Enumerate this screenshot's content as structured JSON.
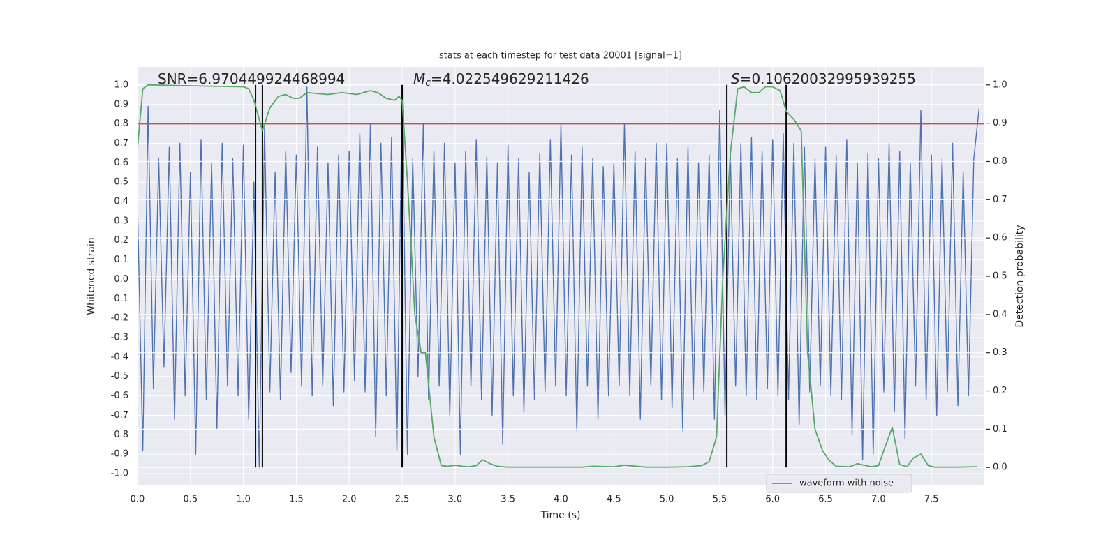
{
  "chart_data": {
    "type": "line",
    "title": "stats at each timestep for test data 20001 [signal=1]",
    "x_label": "Time (s)",
    "y_label": "Whitened strain",
    "y2_label": "Detection probability",
    "xlim": [
      0,
      8
    ],
    "ylim": [
      -1.061,
      1.093
    ],
    "y2lim": [
      -0.047,
      1.047
    ],
    "xticks": [
      {
        "value": 0,
        "label": "0.0"
      },
      0.5,
      {
        "value": 1,
        "label": "1.0"
      },
      1.5,
      {
        "value": 2,
        "label": "2.0"
      },
      2.5,
      {
        "value": 3,
        "label": "3.0"
      },
      3.5,
      {
        "value": 4,
        "label": "4.0"
      },
      4.5,
      {
        "value": 5,
        "label": "5.0"
      },
      5.5,
      {
        "value": 6,
        "label": "6.0"
      },
      6.5,
      {
        "value": 7,
        "label": "7.0"
      },
      7.5
    ],
    "yticks": [
      {
        "value": 1,
        "label": "1.0"
      },
      0.9,
      0.8,
      0.7,
      0.6,
      0.5,
      0.4,
      0.3,
      0.2,
      0.1,
      {
        "value": 0,
        "label": "0.0"
      },
      -0.1,
      -0.2,
      -0.3,
      -0.4,
      -0.5,
      -0.6,
      -0.7,
      -0.8,
      -0.9,
      {
        "value": -1,
        "label": "-1.0"
      }
    ],
    "y2ticks": [
      {
        "value": 1,
        "label": "1.0"
      },
      0.9,
      0.8,
      0.7,
      0.6,
      0.5,
      0.4,
      0.3,
      0.2,
      0.1,
      {
        "value": 0,
        "label": "0.0"
      }
    ],
    "grid": true,
    "legend_loc": "lower right",
    "series": [
      {
        "name": "waveform with noise",
        "color": "#4c72b0",
        "x": [
          0,
          0.05,
          0.1,
          0.15,
          0.2,
          0.25,
          0.3,
          0.35,
          0.4,
          0.45,
          0.5,
          0.55,
          0.6,
          0.65,
          0.7,
          0.75,
          0.8,
          0.85,
          0.9,
          0.95,
          1,
          1.05,
          1.1,
          1.15,
          1.2,
          1.25,
          1.3,
          1.35,
          1.4,
          1.45,
          1.5,
          1.55,
          1.6,
          1.65,
          1.7,
          1.75,
          1.8,
          1.85,
          1.9,
          1.95,
          2,
          2.05,
          2.1,
          2.15,
          2.2,
          2.25,
          2.3,
          2.35,
          2.4,
          2.45,
          2.5,
          2.55,
          2.6,
          2.65,
          2.7,
          2.75,
          2.8,
          2.85,
          2.9,
          2.95,
          3,
          3.05,
          3.1,
          3.15,
          3.2,
          3.25,
          3.3,
          3.35,
          3.4,
          3.45,
          3.5,
          3.55,
          3.6,
          3.65,
          3.7,
          3.75,
          3.8,
          3.85,
          3.9,
          3.95,
          4,
          4.05,
          4.1,
          4.15,
          4.2,
          4.25,
          4.3,
          4.35,
          4.4,
          4.45,
          4.5,
          4.55,
          4.6,
          4.65,
          4.7,
          4.75,
          4.8,
          4.85,
          4.9,
          4.95,
          5,
          5.05,
          5.1,
          5.15,
          5.2,
          5.25,
          5.3,
          5.35,
          5.4,
          5.45,
          5.5,
          5.55,
          5.6,
          5.65,
          5.7,
          5.75,
          5.8,
          5.85,
          5.9,
          5.95,
          6,
          6.05,
          6.1,
          6.15,
          6.2,
          6.25,
          6.3,
          6.35,
          6.4,
          6.45,
          6.5,
          6.55,
          6.6,
          6.65,
          6.7,
          6.75,
          6.8,
          6.85,
          6.9,
          6.95,
          7,
          7.05,
          7.1,
          7.15,
          7.2,
          7.25,
          7.3,
          7.35,
          7.4,
          7.45,
          7.5,
          7.55,
          7.6,
          7.65,
          7.7,
          7.75,
          7.8,
          7.85,
          7.9,
          7.95
        ],
        "values": [
          0.38,
          -0.88,
          0.89,
          -0.56,
          0.62,
          -0.45,
          0.68,
          -0.72,
          0.7,
          -0.6,
          0.55,
          -0.9,
          0.72,
          -0.62,
          0.6,
          -0.77,
          0.7,
          -0.55,
          0.62,
          -0.6,
          0.69,
          -0.72,
          0.5,
          -0.97,
          0.78,
          -0.58,
          0.55,
          -0.62,
          0.66,
          -0.48,
          0.64,
          -0.55,
          0.99,
          -0.6,
          0.68,
          -0.55,
          0.6,
          -0.65,
          0.64,
          -0.58,
          0.66,
          -0.52,
          0.75,
          -0.58,
          0.8,
          -0.81,
          0.7,
          -0.6,
          0.73,
          -0.88,
          0.95,
          -0.9,
          0.62,
          -0.5,
          0.8,
          -0.62,
          0.66,
          -0.55,
          0.7,
          -0.7,
          0.6,
          -0.9,
          0.66,
          -0.55,
          0.72,
          -0.62,
          0.63,
          -0.7,
          0.6,
          -0.85,
          0.69,
          -0.6,
          0.62,
          -0.68,
          0.55,
          -0.62,
          0.65,
          -0.58,
          0.72,
          -0.55,
          0.8,
          -0.6,
          0.64,
          -0.78,
          0.68,
          -0.55,
          0.62,
          -0.72,
          0.58,
          -0.6,
          0.6,
          -0.55,
          0.8,
          -0.6,
          0.66,
          -0.72,
          0.62,
          -0.55,
          0.7,
          -0.62,
          0.7,
          -0.66,
          0.62,
          -0.78,
          0.68,
          -0.62,
          0.6,
          -0.58,
          0.64,
          -0.72,
          0.87,
          -0.7,
          0.65,
          -0.55,
          0.7,
          -0.6,
          0.73,
          -0.62,
          0.66,
          -0.56,
          0.72,
          -0.6,
          0.75,
          -0.62,
          0.7,
          -0.75,
          0.68,
          -0.58,
          0.62,
          -0.55,
          0.68,
          -0.6,
          0.64,
          -0.62,
          0.72,
          -0.8,
          0.6,
          -0.93,
          0.65,
          -0.9,
          0.62,
          -0.58,
          0.7,
          -0.68,
          0.66,
          -0.82,
          0.6,
          -0.55,
          0.87,
          -0.62,
          0.64,
          -0.7,
          0.62,
          -0.58,
          0.7,
          -0.65,
          0.55,
          -0.6,
          0.62,
          0.88
        ]
      },
      {
        "color": "#55a868",
        "axis": "y2",
        "x": [
          0,
          0.05,
          0.1,
          1,
          1.05,
          1.1,
          1.18,
          1.25,
          1.33,
          1.4,
          1.47,
          1.53,
          1.6,
          1.8,
          1.93,
          2.07,
          2.2,
          2.27,
          2.35,
          2.43,
          2.47,
          2.5,
          2.55,
          2.62,
          2.68,
          2.72,
          2.8,
          2.87,
          2.93,
          3,
          3.07,
          3.13,
          3.2,
          3.26,
          3.33,
          3.4,
          3.5,
          4,
          4.2,
          4.3,
          4.5,
          4.6,
          4.8,
          5,
          5.2,
          5.33,
          5.4,
          5.47,
          5.53,
          5.6,
          5.67,
          5.73,
          5.8,
          5.87,
          5.93,
          6,
          6.07,
          6.13,
          6.2,
          6.27,
          6.33,
          6.4,
          6.47,
          6.53,
          6.6,
          6.73,
          6.8,
          6.93,
          7,
          7.07,
          7.13,
          7.2,
          7.27,
          7.33,
          7.4,
          7.47,
          7.53,
          7.73,
          7.93
        ],
        "values": [
          0.836,
          0.99,
          1.0,
          0.995,
          0.99,
          0.96,
          0.88,
          0.94,
          0.97,
          0.975,
          0.965,
          0.965,
          0.98,
          0.975,
          0.98,
          0.975,
          0.985,
          0.98,
          0.965,
          0.96,
          0.97,
          0.96,
          0.75,
          0.4,
          0.3,
          0.3,
          0.08,
          0.005,
          0.003,
          0.006,
          0.003,
          0.002,
          0.005,
          0.02,
          0.01,
          0.003,
          0.001,
          0.001,
          0.001,
          0.003,
          0.002,
          0.006,
          0.001,
          0.001,
          0.002,
          0.005,
          0.015,
          0.08,
          0.5,
          0.82,
          0.99,
          0.995,
          0.98,
          0.98,
          0.995,
          0.995,
          0.985,
          0.93,
          0.91,
          0.88,
          0.3,
          0.1,
          0.045,
          0.02,
          0.003,
          0.002,
          0.01,
          0.002,
          0.005,
          0.06,
          0.105,
          0.008,
          0.002,
          0.025,
          0.035,
          0.005,
          0.001,
          0.001,
          0.002
        ]
      }
    ],
    "hline": {
      "value": 0.8,
      "color": "#c44e52"
    },
    "vlines": {
      "values": [
        1.115,
        1.18,
        2.5,
        5.567,
        6.128
      ],
      "color": "#000000"
    },
    "annotations": [
      {
        "text": "SNR=6.970449924468994"
      },
      {
        "symbol": "M",
        "subscript": "c",
        "text": "=4.022549629211426"
      },
      {
        "symbol": "S",
        "text": "=0.10620032995939255"
      }
    ]
  }
}
